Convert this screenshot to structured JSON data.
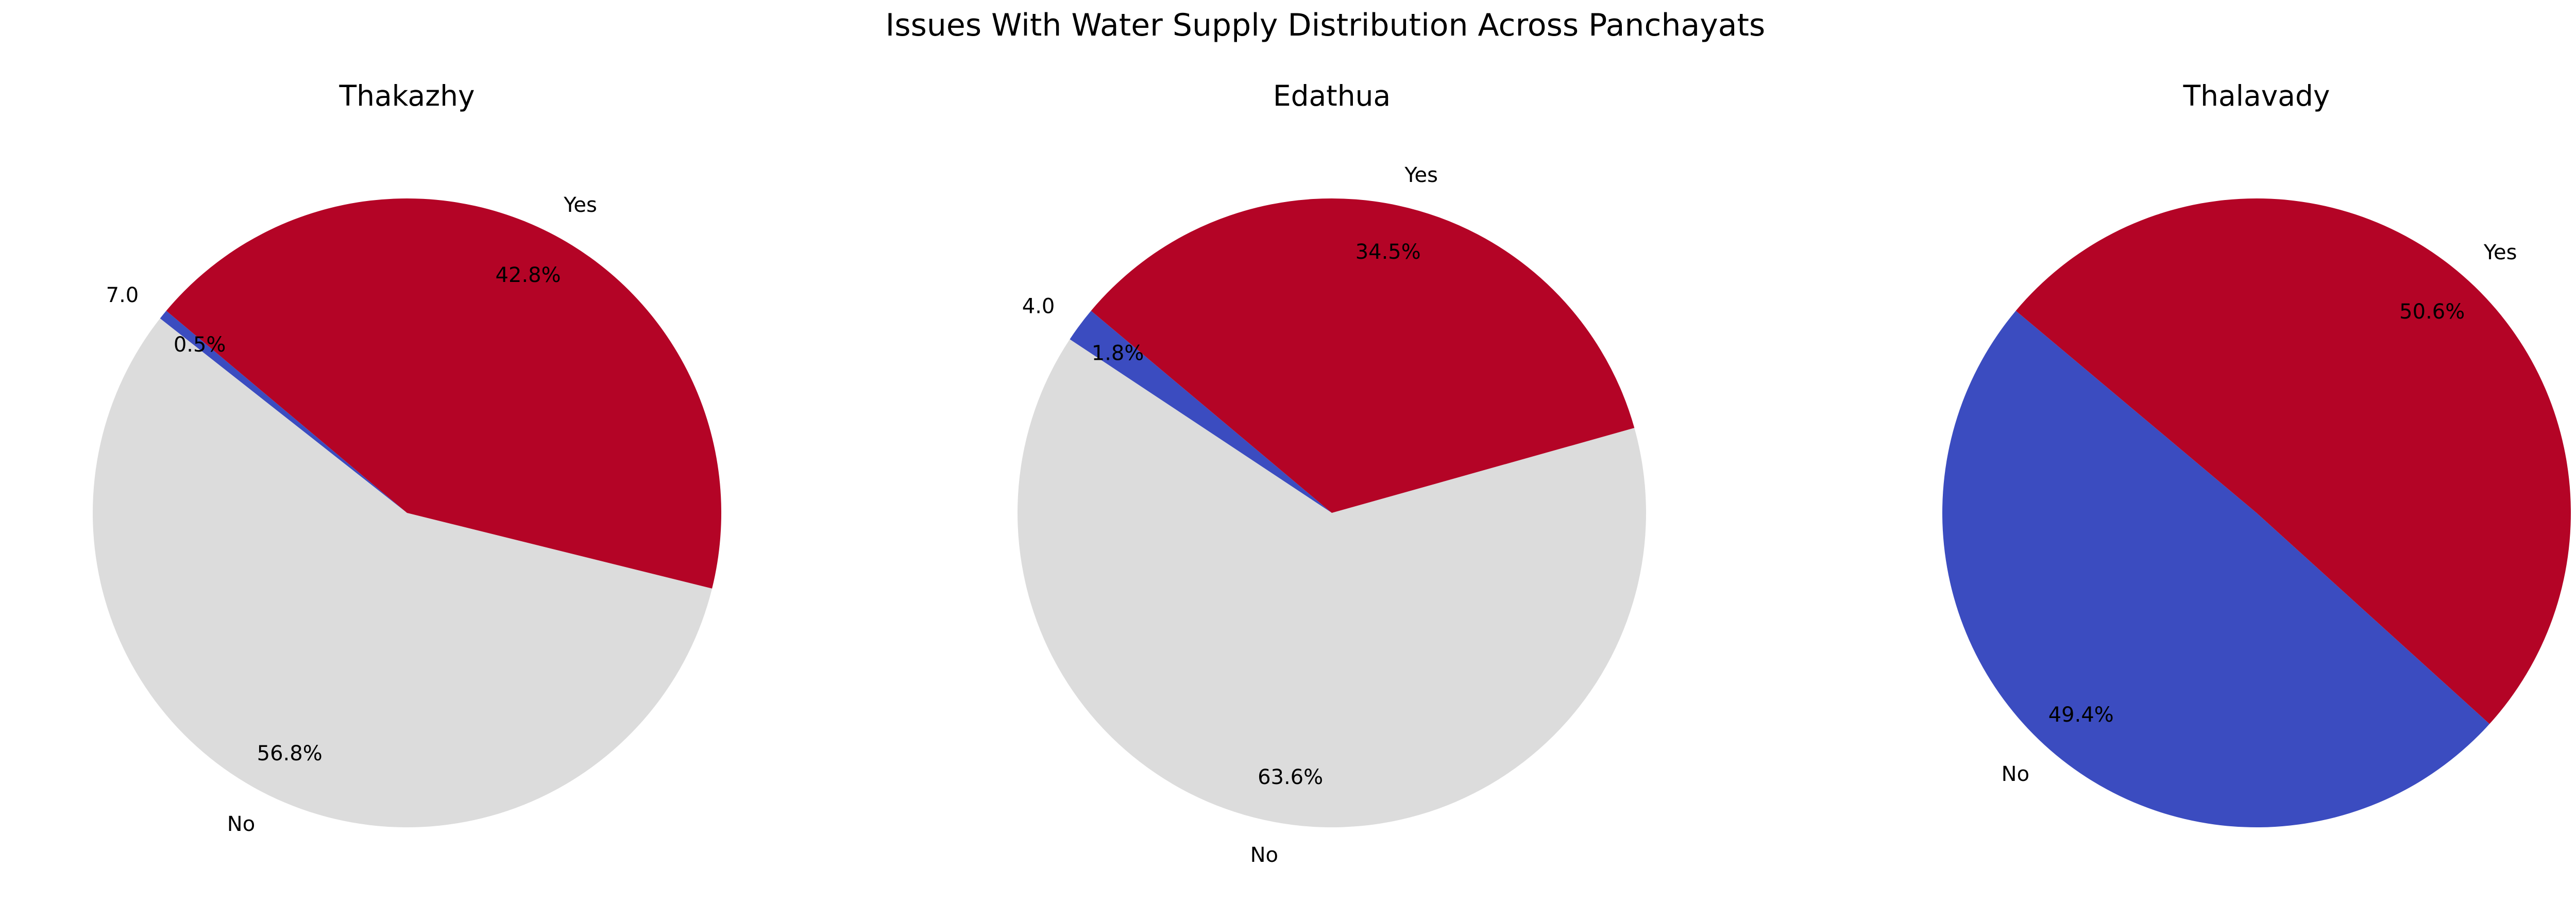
{
  "figure_title": "Issues With Water Supply Distribution Across Panchayats",
  "colors": {
    "7.0": "#3b4cc0",
    "4.0": "#3b4cc0",
    "Yes": "#b40426",
    "No": "#dcdcdc",
    "No_thalavady": "#3b4cc0"
  },
  "chart_data": [
    {
      "type": "pie",
      "title": "Thakazhy",
      "start_angle_deg": 140,
      "direction": "counterclockwise",
      "slices": [
        {
          "label": "7.0",
          "percent": 0.5,
          "pct_text": "0.5%",
          "color": "#3b4cc0"
        },
        {
          "label": "No",
          "percent": 56.8,
          "pct_text": "56.8%",
          "color": "#dcdcdc"
        },
        {
          "label": "Yes",
          "percent": 42.8,
          "pct_text": "42.8%",
          "color": "#b40426"
        }
      ]
    },
    {
      "type": "pie",
      "title": "Edathua",
      "start_angle_deg": 140,
      "direction": "counterclockwise",
      "slices": [
        {
          "label": "4.0",
          "percent": 1.8,
          "pct_text": "1.8%",
          "color": "#3b4cc0"
        },
        {
          "label": "No",
          "percent": 63.6,
          "pct_text": "63.6%",
          "color": "#dcdcdc"
        },
        {
          "label": "Yes",
          "percent": 34.5,
          "pct_text": "34.5%",
          "color": "#b40426"
        }
      ]
    },
    {
      "type": "pie",
      "title": "Thalavady",
      "start_angle_deg": 140,
      "direction": "counterclockwise",
      "slices": [
        {
          "label": "No",
          "percent": 49.4,
          "pct_text": "49.4%",
          "color": "#3b4cc0"
        },
        {
          "label": "Yes",
          "percent": 50.6,
          "pct_text": "50.6%",
          "color": "#b40426"
        }
      ]
    }
  ]
}
